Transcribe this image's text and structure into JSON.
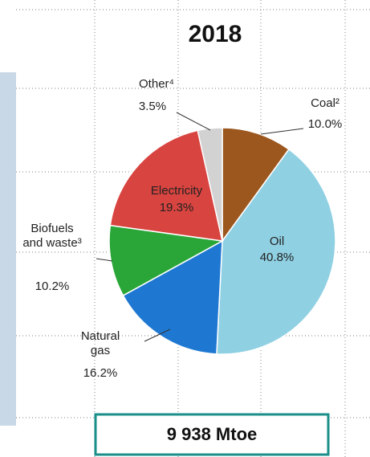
{
  "chart_data": {
    "type": "pie",
    "title": "2018",
    "categories": [
      "Coal²",
      "Oil",
      "Natural gas",
      "Biofuels and waste³",
      "Electricity",
      "Other⁴"
    ],
    "values": [
      10.0,
      40.8,
      16.2,
      10.2,
      19.3,
      3.5
    ],
    "value_labels": [
      "10.0%",
      "40.8%",
      "16.2%",
      "10.2%",
      "19.3%",
      "3.5%"
    ],
    "colors": [
      "#9c571f",
      "#8fd0e3",
      "#1e78d2",
      "#2aa639",
      "#d8443f",
      "#d2d2d2"
    ],
    "total": "9 938 Mtoe"
  }
}
